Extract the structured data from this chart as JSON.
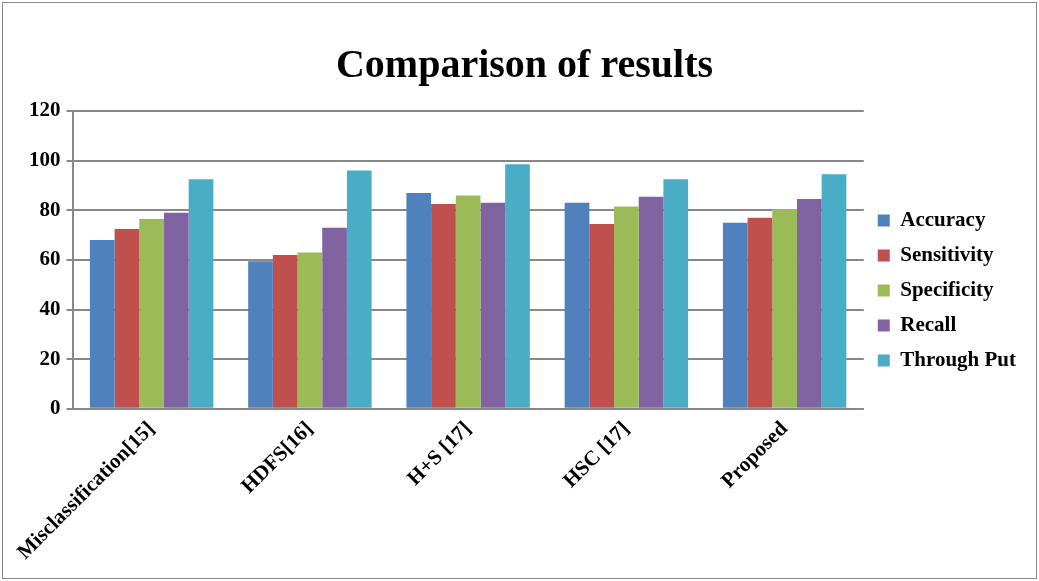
{
  "chart_data": {
    "type": "bar",
    "title": "Comparison of results",
    "categories": [
      "Misclassification[15]",
      "HDFS[16]",
      "H+S [17]",
      "HSC [17]",
      "Proposed"
    ],
    "series": [
      {
        "name": "Accuracy",
        "color": "#4f81bd",
        "values": [
          68,
          59.5,
          87,
          83,
          75
        ]
      },
      {
        "name": "Sensitivity",
        "color": "#c0504d",
        "values": [
          72.5,
          62,
          82.5,
          74.5,
          77
        ]
      },
      {
        "name": "Specificity",
        "color": "#9bbb59",
        "values": [
          76.5,
          63,
          86,
          81.5,
          80.5
        ]
      },
      {
        "name": "Recall",
        "color": "#8064a2",
        "values": [
          79,
          73,
          83,
          85.5,
          84.5
        ]
      },
      {
        "name": "Through Put",
        "color": "#4bacc6",
        "values": [
          92.5,
          96,
          98.5,
          92.5,
          94.5
        ]
      }
    ],
    "ylim": [
      0,
      120
    ],
    "yticks": [
      0,
      20,
      40,
      60,
      80,
      100,
      120
    ],
    "grid": "y",
    "legend": "right"
  }
}
